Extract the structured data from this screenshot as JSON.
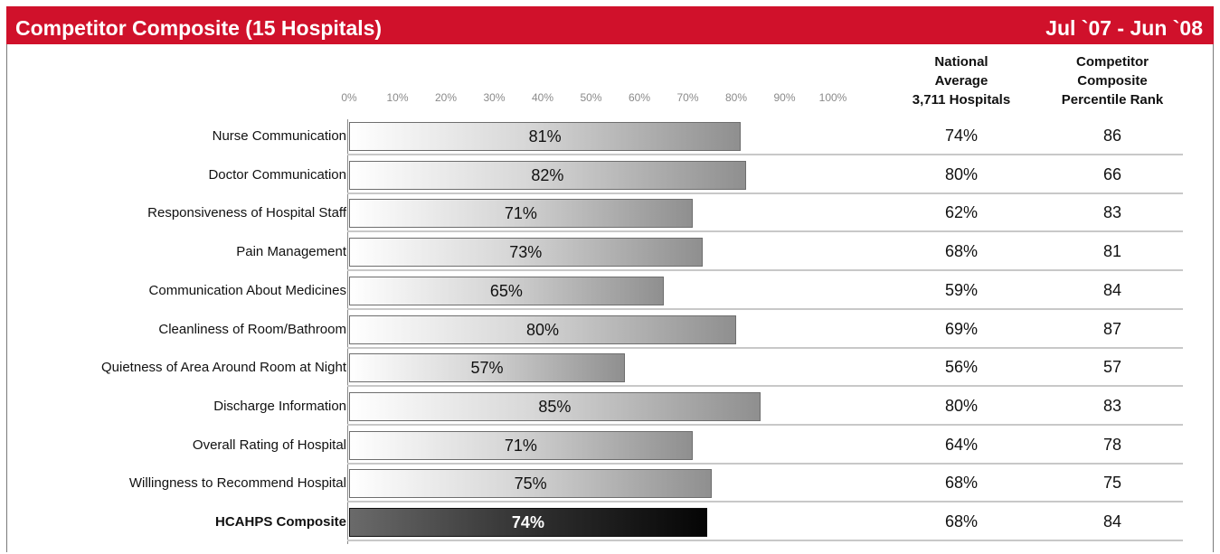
{
  "header": {
    "title": "Competitor Composite (15 Hospitals)",
    "period": "Jul `07 - Jun `08"
  },
  "columns": {
    "national_average": [
      "National",
      "Average",
      "3,711 Hospitals"
    ],
    "percentile_rank": [
      "Competitor",
      "Composite",
      "Percentile Rank"
    ]
  },
  "colors": {
    "header_bg": "#d0112b",
    "bar_gray": "#8f8f8f",
    "bar_dark": "#050505"
  },
  "chart_data": {
    "type": "bar",
    "orientation": "horizontal",
    "title": "Competitor Composite (15 Hospitals)",
    "x_ticks": [
      "0%",
      "10%",
      "20%",
      "30%",
      "40%",
      "50%",
      "60%",
      "70%",
      "80%",
      "90%",
      "100%"
    ],
    "xlim": [
      0,
      100
    ],
    "categories": [
      "Nurse Communication",
      "Doctor Communication",
      "Responsiveness of Hospital Staff",
      "Pain Management",
      "Communication About Medicines",
      "Cleanliness of Room/Bathroom",
      "Quietness of Area Around Room at Night",
      "Discharge Information",
      "Overall Rating of Hospital",
      "Willingness to Recommend Hospital",
      "HCAHPS Composite"
    ],
    "values": [
      81,
      82,
      71,
      73,
      65,
      80,
      57,
      85,
      71,
      75,
      74
    ],
    "value_labels": [
      "81%",
      "82%",
      "71%",
      "73%",
      "65%",
      "80%",
      "57%",
      "85%",
      "71%",
      "75%",
      "74%"
    ],
    "national_average": [
      "74%",
      "80%",
      "62%",
      "68%",
      "59%",
      "69%",
      "56%",
      "80%",
      "64%",
      "68%",
      "68%"
    ],
    "percentile_rank": [
      "86",
      "66",
      "83",
      "81",
      "84",
      "87",
      "57",
      "83",
      "78",
      "75",
      "84"
    ],
    "highlight_category": "HCAHPS Composite"
  }
}
